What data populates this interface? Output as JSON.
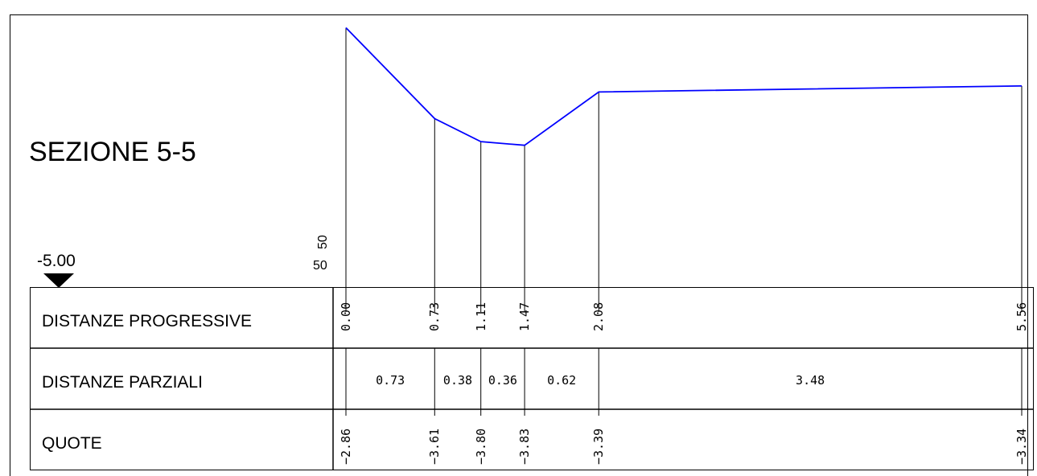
{
  "section_title": "SEZIONE 5-5",
  "reference_level": "-5.00",
  "scale": {
    "vertical": "50",
    "horizontal": "50"
  },
  "table": {
    "rows": [
      {
        "label": "DISTANZE PROGRESSIVE"
      },
      {
        "label": "DISTANZE PARZIALI"
      },
      {
        "label": "QUOTE"
      }
    ]
  },
  "chart_data": {
    "type": "line",
    "series": [
      {
        "x": [
          0.0,
          0.73,
          1.11,
          1.47,
          2.08,
          5.56
        ],
        "y": [
          -2.86,
          -3.61,
          -3.8,
          -3.83,
          -3.39,
          -3.34
        ]
      }
    ],
    "progressive_labels": [
      "0.00",
      "0.73",
      "1.11",
      "1.47",
      "2.08",
      "5.56"
    ],
    "partial_labels": [
      "0.73",
      "0.38",
      "0.36",
      "0.62",
      "3.48"
    ],
    "elevation_labels": [
      "−2.86",
      "−3.61",
      "−3.80",
      "−3.83",
      "−3.39",
      "−3.34"
    ],
    "datum": -5.0,
    "colors": {
      "profile": "#0000ff",
      "lines": "#000000"
    }
  }
}
